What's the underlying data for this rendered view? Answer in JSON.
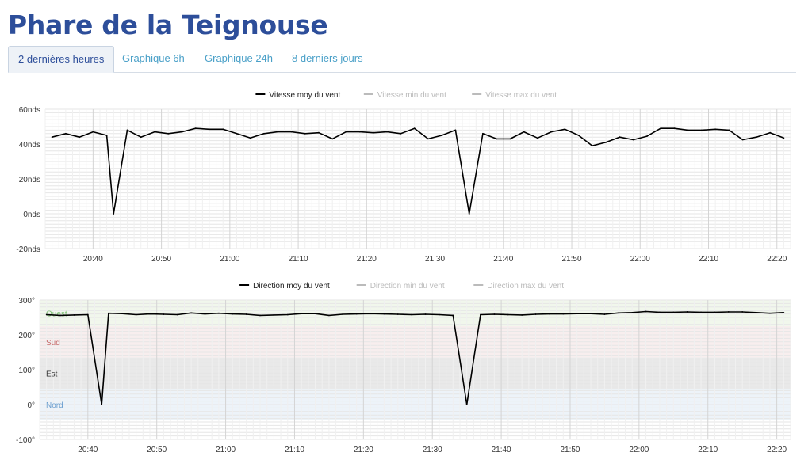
{
  "page": {
    "title": "Phare de la Teignouse"
  },
  "tabs": [
    {
      "label": "2 dernières heures",
      "active": true
    },
    {
      "label": "Graphique 6h",
      "active": false
    },
    {
      "label": "Graphique 24h",
      "active": false
    },
    {
      "label": "8 derniers jours",
      "active": false
    }
  ],
  "colors": {
    "title": "#2d4e9a",
    "tab_link": "#4aa0c8",
    "line": "#000000",
    "legend_inactive": "#bbbbbb"
  },
  "chart_data": [
    {
      "type": "line",
      "x_ticks": [
        "20:40",
        "20:50",
        "21:00",
        "21:10",
        "21:20",
        "21:30",
        "21:40",
        "21:50",
        "22:00",
        "22:10",
        "22:20"
      ],
      "x_range": [
        "20:33",
        "22:22"
      ],
      "y_ticks": [
        "60nds",
        "40nds",
        "20nds",
        "0nds",
        "-20nds"
      ],
      "ylim": [
        -20,
        60
      ],
      "grid": true,
      "legend_position": "top-center",
      "legend": [
        "Vitesse moy du vent",
        "Vitesse min du vent",
        "Vitesse max du vent"
      ],
      "series": [
        {
          "name": "Vitesse moy du vent",
          "x": [
            "20:34",
            "20:36",
            "20:38",
            "20:40",
            "20:42",
            "20:43",
            "20:45",
            "20:47",
            "20:49",
            "20:51",
            "20:53",
            "20:55",
            "20:57",
            "20:59",
            "21:01",
            "21:03",
            "21:05",
            "21:07",
            "21:09",
            "21:11",
            "21:13",
            "21:15",
            "21:17",
            "21:19",
            "21:21",
            "21:23",
            "21:25",
            "21:27",
            "21:29",
            "21:31",
            "21:33",
            "21:35",
            "21:37",
            "21:39",
            "21:41",
            "21:43",
            "21:45",
            "21:47",
            "21:49",
            "21:51",
            "21:53",
            "21:55",
            "21:57",
            "21:59",
            "22:01",
            "22:03",
            "22:05",
            "22:07",
            "22:09",
            "22:11",
            "22:13",
            "22:15",
            "22:17",
            "22:19",
            "22:21"
          ],
          "values": [
            44,
            46,
            44,
            47,
            45,
            0,
            48,
            44,
            47,
            46,
            47,
            49,
            48.5,
            48.5,
            46,
            43.5,
            46,
            47,
            47,
            46,
            46.5,
            43,
            47,
            47,
            46.5,
            47,
            46,
            49,
            43,
            45,
            48,
            0,
            46,
            43,
            43,
            47,
            43.5,
            47,
            48.5,
            45,
            39,
            41,
            44,
            42.5,
            44.5,
            49,
            49,
            48,
            48,
            48.5,
            48,
            42.5,
            44,
            46.5,
            43.5
          ]
        },
        {
          "name": "Vitesse min du vent",
          "x": [],
          "values": []
        },
        {
          "name": "Vitesse max du vent",
          "x": [],
          "values": []
        }
      ]
    },
    {
      "type": "line",
      "x_ticks": [
        "20:40",
        "20:50",
        "21:00",
        "21:10",
        "21:20",
        "21:30",
        "21:40",
        "21:50",
        "22:00",
        "22:10",
        "22:20"
      ],
      "x_range": [
        "20:33",
        "22:22"
      ],
      "y_ticks": [
        "300°",
        "200°",
        "100°",
        "0°",
        "-100°"
      ],
      "ylim": [
        -100,
        300
      ],
      "grid": true,
      "legend_position": "top-center",
      "legend": [
        "Direction moy du vent",
        "Direction min du vent",
        "Direction max du vent"
      ],
      "bands": [
        {
          "label": "Ouest",
          "from": 225,
          "to": 300,
          "color": "#f1f7ec",
          "label_color": "#7cbf72"
        },
        {
          "label": "Sud",
          "from": 135,
          "to": 225,
          "color": "#f8eeee",
          "label_color": "#c66a6a"
        },
        {
          "label": "Est",
          "from": 45,
          "to": 135,
          "color": "#e9e9e9",
          "label_color": "#333333"
        },
        {
          "label": "Nord",
          "from": -45,
          "to": 45,
          "color": "#edf3f9",
          "label_color": "#6b9fd0"
        }
      ],
      "series": [
        {
          "name": "Direction moy du vent",
          "x": [
            "20:34",
            "20:36",
            "20:38",
            "20:40",
            "20:42",
            "20:43",
            "20:45",
            "20:47",
            "20:49",
            "20:51",
            "20:53",
            "20:55",
            "20:57",
            "20:59",
            "21:01",
            "21:03",
            "21:05",
            "21:07",
            "21:09",
            "21:11",
            "21:13",
            "21:15",
            "21:17",
            "21:19",
            "21:21",
            "21:23",
            "21:25",
            "21:27",
            "21:29",
            "21:31",
            "21:33",
            "21:35",
            "21:37",
            "21:39",
            "21:41",
            "21:43",
            "21:45",
            "21:47",
            "21:49",
            "21:51",
            "21:53",
            "21:55",
            "21:57",
            "21:59",
            "22:01",
            "22:03",
            "22:05",
            "22:07",
            "22:09",
            "22:11",
            "22:13",
            "22:15",
            "22:17",
            "22:19",
            "22:21"
          ],
          "values": [
            258,
            256,
            257,
            258,
            0,
            262,
            261,
            258,
            260,
            259,
            258,
            263,
            260,
            262,
            260,
            259,
            256,
            257,
            258,
            261,
            261,
            256,
            259,
            260,
            261,
            260,
            259,
            258,
            259,
            258,
            256,
            0,
            258,
            259,
            258,
            257,
            259,
            260,
            260,
            261,
            261,
            259,
            263,
            264,
            267,
            265,
            265,
            266,
            265,
            265,
            266,
            266,
            264,
            262,
            264
          ]
        },
        {
          "name": "Direction min du vent",
          "x": [],
          "values": []
        },
        {
          "name": "Direction max du vent",
          "x": [],
          "values": []
        }
      ]
    }
  ]
}
